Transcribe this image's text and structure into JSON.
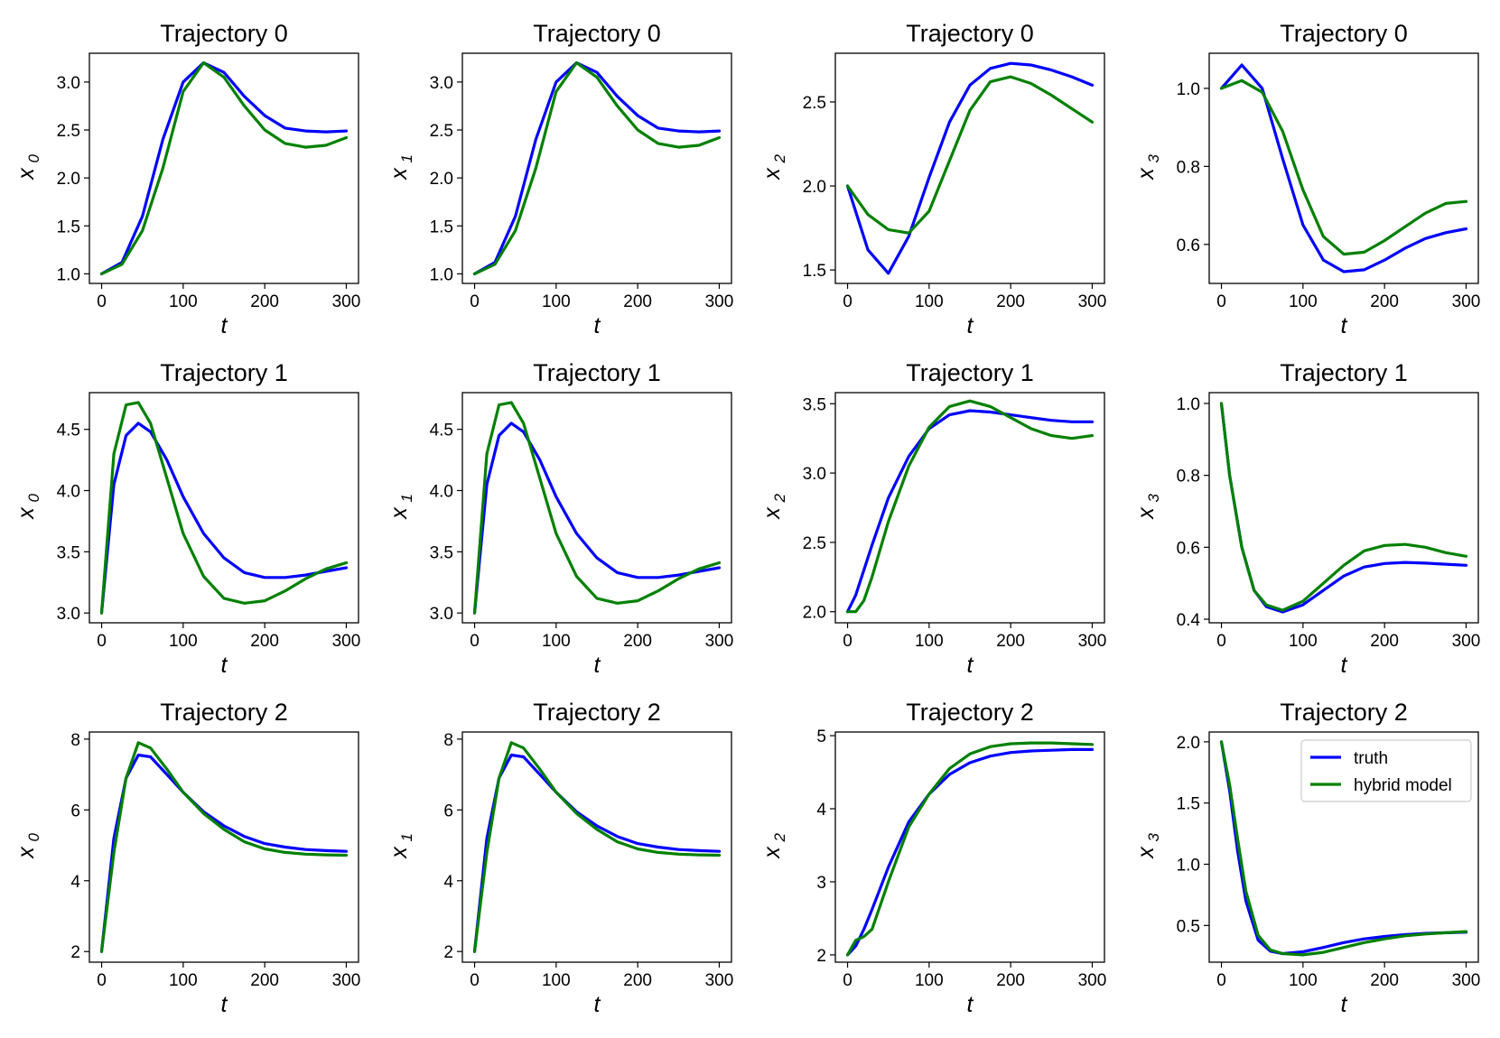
{
  "colors": {
    "truth": "#0000ff",
    "hybrid": "#008000"
  },
  "legend": {
    "truth_label": "truth",
    "hybrid_label": "hybrid model"
  },
  "chart_data": [
    {
      "type": "line",
      "title": "Trajectory 0",
      "xlabel": "t",
      "ylabel": "x",
      "ylabel_sub": "0",
      "xlim": [
        -15,
        315
      ],
      "ylim": [
        0.9,
        3.3
      ],
      "xticks": [
        0,
        100,
        200,
        300
      ],
      "xtick_labels": [
        "0",
        "100",
        "200",
        "300"
      ],
      "yticks": [
        1.0,
        1.5,
        2.0,
        2.5,
        3.0
      ],
      "ytick_labels": [
        "1.0",
        "1.5",
        "2.0",
        "2.5",
        "3.0"
      ],
      "x": [
        0,
        25,
        50,
        75,
        100,
        125,
        150,
        175,
        200,
        225,
        250,
        275,
        300
      ],
      "series": [
        {
          "name": "truth",
          "values": [
            1.0,
            1.12,
            1.6,
            2.4,
            3.0,
            3.2,
            3.1,
            2.85,
            2.65,
            2.52,
            2.49,
            2.48,
            2.49
          ]
        },
        {
          "name": "hybrid model",
          "values": [
            1.0,
            1.1,
            1.45,
            2.1,
            2.9,
            3.2,
            3.05,
            2.75,
            2.5,
            2.36,
            2.32,
            2.34,
            2.42
          ]
        }
      ]
    },
    {
      "type": "line",
      "title": "Trajectory 0",
      "xlabel": "t",
      "ylabel": "x",
      "ylabel_sub": "1",
      "xlim": [
        -15,
        315
      ],
      "ylim": [
        0.9,
        3.3
      ],
      "xticks": [
        0,
        100,
        200,
        300
      ],
      "xtick_labels": [
        "0",
        "100",
        "200",
        "300"
      ],
      "yticks": [
        1.0,
        1.5,
        2.0,
        2.5,
        3.0
      ],
      "ytick_labels": [
        "1.0",
        "1.5",
        "2.0",
        "2.5",
        "3.0"
      ],
      "x": [
        0,
        25,
        50,
        75,
        100,
        125,
        150,
        175,
        200,
        225,
        250,
        275,
        300
      ],
      "series": [
        {
          "name": "truth",
          "values": [
            1.0,
            1.12,
            1.6,
            2.4,
            3.0,
            3.2,
            3.1,
            2.85,
            2.65,
            2.52,
            2.49,
            2.48,
            2.49
          ]
        },
        {
          "name": "hybrid model",
          "values": [
            1.0,
            1.1,
            1.45,
            2.1,
            2.9,
            3.2,
            3.05,
            2.75,
            2.5,
            2.36,
            2.32,
            2.34,
            2.42
          ]
        }
      ]
    },
    {
      "type": "line",
      "title": "Trajectory 0",
      "xlabel": "t",
      "ylabel": "x",
      "ylabel_sub": "2",
      "xlim": [
        -15,
        315
      ],
      "ylim": [
        1.42,
        2.79
      ],
      "xticks": [
        0,
        100,
        200,
        300
      ],
      "xtick_labels": [
        "0",
        "100",
        "200",
        "300"
      ],
      "yticks": [
        1.5,
        2.0,
        2.5
      ],
      "ytick_labels": [
        "1.5",
        "2.0",
        "2.5"
      ],
      "x": [
        0,
        25,
        50,
        75,
        100,
        125,
        150,
        175,
        200,
        225,
        250,
        275,
        300
      ],
      "series": [
        {
          "name": "truth",
          "values": [
            2.0,
            1.62,
            1.48,
            1.7,
            2.05,
            2.38,
            2.6,
            2.7,
            2.73,
            2.72,
            2.69,
            2.65,
            2.6
          ]
        },
        {
          "name": "hybrid model",
          "values": [
            2.0,
            1.83,
            1.74,
            1.72,
            1.85,
            2.15,
            2.45,
            2.62,
            2.65,
            2.61,
            2.54,
            2.46,
            2.38
          ]
        }
      ]
    },
    {
      "type": "line",
      "title": "Trajectory 0",
      "xlabel": "t",
      "ylabel": "x",
      "ylabel_sub": "3",
      "xlim": [
        -15,
        315
      ],
      "ylim": [
        0.5,
        1.09
      ],
      "xticks": [
        0,
        100,
        200,
        300
      ],
      "xtick_labels": [
        "0",
        "100",
        "200",
        "300"
      ],
      "yticks": [
        0.6,
        0.8,
        1.0
      ],
      "ytick_labels": [
        "0.6",
        "0.8",
        "1.0"
      ],
      "x": [
        0,
        25,
        50,
        75,
        100,
        125,
        150,
        175,
        200,
        225,
        250,
        275,
        300
      ],
      "series": [
        {
          "name": "truth",
          "values": [
            1.0,
            1.06,
            1.0,
            0.82,
            0.65,
            0.56,
            0.53,
            0.535,
            0.56,
            0.59,
            0.615,
            0.63,
            0.64
          ]
        },
        {
          "name": "hybrid model",
          "values": [
            1.0,
            1.02,
            0.99,
            0.89,
            0.74,
            0.62,
            0.575,
            0.58,
            0.61,
            0.645,
            0.68,
            0.705,
            0.71
          ]
        }
      ]
    },
    {
      "type": "line",
      "title": "Trajectory 1",
      "xlabel": "t",
      "ylabel": "x",
      "ylabel_sub": "0",
      "xlim": [
        -15,
        315
      ],
      "ylim": [
        2.92,
        4.8
      ],
      "xticks": [
        0,
        100,
        200,
        300
      ],
      "xtick_labels": [
        "0",
        "100",
        "200",
        "300"
      ],
      "yticks": [
        3.0,
        3.5,
        4.0,
        4.5
      ],
      "ytick_labels": [
        "3.0",
        "3.5",
        "4.0",
        "4.5"
      ],
      "x": [
        0,
        15,
        30,
        45,
        60,
        80,
        100,
        125,
        150,
        175,
        200,
        225,
        250,
        275,
        300
      ],
      "series": [
        {
          "name": "truth",
          "values": [
            3.0,
            4.05,
            4.45,
            4.55,
            4.48,
            4.25,
            3.95,
            3.65,
            3.45,
            3.33,
            3.29,
            3.29,
            3.31,
            3.34,
            3.37
          ]
        },
        {
          "name": "hybrid model",
          "values": [
            3.0,
            4.3,
            4.7,
            4.72,
            4.55,
            4.1,
            3.65,
            3.3,
            3.12,
            3.08,
            3.1,
            3.18,
            3.28,
            3.36,
            3.41
          ]
        }
      ]
    },
    {
      "type": "line",
      "title": "Trajectory 1",
      "xlabel": "t",
      "ylabel": "x",
      "ylabel_sub": "1",
      "xlim": [
        -15,
        315
      ],
      "ylim": [
        2.92,
        4.8
      ],
      "xticks": [
        0,
        100,
        200,
        300
      ],
      "xtick_labels": [
        "0",
        "100",
        "200",
        "300"
      ],
      "yticks": [
        3.0,
        3.5,
        4.0,
        4.5
      ],
      "ytick_labels": [
        "3.0",
        "3.5",
        "4.0",
        "4.5"
      ],
      "x": [
        0,
        15,
        30,
        45,
        60,
        80,
        100,
        125,
        150,
        175,
        200,
        225,
        250,
        275,
        300
      ],
      "series": [
        {
          "name": "truth",
          "values": [
            3.0,
            4.05,
            4.45,
            4.55,
            4.48,
            4.25,
            3.95,
            3.65,
            3.45,
            3.33,
            3.29,
            3.29,
            3.31,
            3.34,
            3.37
          ]
        },
        {
          "name": "hybrid model",
          "values": [
            3.0,
            4.3,
            4.7,
            4.72,
            4.55,
            4.1,
            3.65,
            3.3,
            3.12,
            3.08,
            3.1,
            3.18,
            3.28,
            3.36,
            3.41
          ]
        }
      ]
    },
    {
      "type": "line",
      "title": "Trajectory 1",
      "xlabel": "t",
      "ylabel": "x",
      "ylabel_sub": "2",
      "xlim": [
        -15,
        315
      ],
      "ylim": [
        1.92,
        3.58
      ],
      "xticks": [
        0,
        100,
        200,
        300
      ],
      "xtick_labels": [
        "0",
        "100",
        "200",
        "300"
      ],
      "yticks": [
        2.0,
        2.5,
        3.0,
        3.5
      ],
      "ytick_labels": [
        "2.0",
        "2.5",
        "3.0",
        "3.5"
      ],
      "x": [
        0,
        10,
        20,
        30,
        50,
        75,
        100,
        125,
        150,
        175,
        200,
        225,
        250,
        275,
        300
      ],
      "series": [
        {
          "name": "truth",
          "values": [
            2.0,
            2.12,
            2.3,
            2.48,
            2.82,
            3.12,
            3.32,
            3.42,
            3.45,
            3.44,
            3.42,
            3.4,
            3.38,
            3.37,
            3.37
          ]
        },
        {
          "name": "hybrid model",
          "values": [
            2.0,
            2.0,
            2.08,
            2.25,
            2.65,
            3.05,
            3.33,
            3.48,
            3.52,
            3.48,
            3.4,
            3.32,
            3.27,
            3.25,
            3.27
          ]
        }
      ]
    },
    {
      "type": "line",
      "title": "Trajectory 1",
      "xlabel": "t",
      "ylabel": "x",
      "ylabel_sub": "3",
      "xlim": [
        -15,
        315
      ],
      "ylim": [
        0.39,
        1.03
      ],
      "xticks": [
        0,
        100,
        200,
        300
      ],
      "xtick_labels": [
        "0",
        "100",
        "200",
        "300"
      ],
      "yticks": [
        0.4,
        0.6,
        0.8,
        1.0
      ],
      "ytick_labels": [
        "0.4",
        "0.6",
        "0.8",
        "1.0"
      ],
      "x": [
        0,
        10,
        25,
        40,
        55,
        75,
        100,
        125,
        150,
        175,
        200,
        225,
        250,
        275,
        300
      ],
      "series": [
        {
          "name": "truth",
          "values": [
            1.0,
            0.8,
            0.6,
            0.48,
            0.435,
            0.42,
            0.44,
            0.48,
            0.52,
            0.545,
            0.555,
            0.558,
            0.556,
            0.553,
            0.55
          ]
        },
        {
          "name": "hybrid model",
          "values": [
            1.0,
            0.8,
            0.6,
            0.48,
            0.44,
            0.425,
            0.45,
            0.5,
            0.55,
            0.59,
            0.605,
            0.608,
            0.6,
            0.585,
            0.575
          ]
        }
      ]
    },
    {
      "type": "line",
      "title": "Trajectory 2",
      "xlabel": "t",
      "ylabel": "x",
      "ylabel_sub": "0",
      "xlim": [
        -15,
        315
      ],
      "ylim": [
        1.7,
        8.2
      ],
      "xticks": [
        0,
        100,
        200,
        300
      ],
      "xtick_labels": [
        "0",
        "100",
        "200",
        "300"
      ],
      "yticks": [
        2,
        4,
        6,
        8
      ],
      "ytick_labels": [
        "2",
        "4",
        "6",
        "8"
      ],
      "x": [
        0,
        15,
        30,
        45,
        60,
        80,
        100,
        125,
        150,
        175,
        200,
        225,
        250,
        275,
        300
      ],
      "series": [
        {
          "name": "truth",
          "values": [
            2.0,
            5.2,
            6.9,
            7.55,
            7.5,
            7.0,
            6.5,
            5.95,
            5.55,
            5.25,
            5.05,
            4.95,
            4.88,
            4.85,
            4.83
          ]
        },
        {
          "name": "hybrid model",
          "values": [
            2.0,
            4.8,
            6.9,
            7.9,
            7.75,
            7.15,
            6.5,
            5.9,
            5.45,
            5.1,
            4.9,
            4.8,
            4.75,
            4.73,
            4.72
          ]
        }
      ]
    },
    {
      "type": "line",
      "title": "Trajectory 2",
      "xlabel": "t",
      "ylabel": "x",
      "ylabel_sub": "1",
      "xlim": [
        -15,
        315
      ],
      "ylim": [
        1.7,
        8.2
      ],
      "xticks": [
        0,
        100,
        200,
        300
      ],
      "xtick_labels": [
        "0",
        "100",
        "200",
        "300"
      ],
      "yticks": [
        2,
        4,
        6,
        8
      ],
      "ytick_labels": [
        "2",
        "4",
        "6",
        "8"
      ],
      "x": [
        0,
        15,
        30,
        45,
        60,
        80,
        100,
        125,
        150,
        175,
        200,
        225,
        250,
        275,
        300
      ],
      "series": [
        {
          "name": "truth",
          "values": [
            2.0,
            5.2,
            6.9,
            7.55,
            7.5,
            7.0,
            6.5,
            5.95,
            5.55,
            5.25,
            5.05,
            4.95,
            4.88,
            4.85,
            4.83
          ]
        },
        {
          "name": "hybrid model",
          "values": [
            2.0,
            4.8,
            6.9,
            7.9,
            7.75,
            7.15,
            6.5,
            5.9,
            5.45,
            5.1,
            4.9,
            4.8,
            4.75,
            4.73,
            4.72
          ]
        }
      ]
    },
    {
      "type": "line",
      "title": "Trajectory 2",
      "xlabel": "t",
      "ylabel": "x",
      "ylabel_sub": "2",
      "xlim": [
        -15,
        315
      ],
      "ylim": [
        1.9,
        5.05
      ],
      "xticks": [
        0,
        100,
        200,
        300
      ],
      "xtick_labels": [
        "0",
        "100",
        "200",
        "300"
      ],
      "yticks": [
        2,
        3,
        4,
        5
      ],
      "ytick_labels": [
        "2",
        "3",
        "4",
        "5"
      ],
      "x": [
        0,
        10,
        20,
        30,
        50,
        75,
        100,
        125,
        150,
        175,
        200,
        225,
        250,
        275,
        300
      ],
      "series": [
        {
          "name": "truth",
          "values": [
            2.0,
            2.12,
            2.35,
            2.62,
            3.2,
            3.82,
            4.2,
            4.47,
            4.63,
            4.72,
            4.77,
            4.79,
            4.8,
            4.81,
            4.81
          ]
        },
        {
          "name": "hybrid model",
          "values": [
            2.0,
            2.2,
            2.25,
            2.35,
            3.0,
            3.75,
            4.2,
            4.55,
            4.75,
            4.85,
            4.89,
            4.9,
            4.9,
            4.89,
            4.88
          ]
        }
      ]
    },
    {
      "type": "line",
      "title": "Trajectory 2",
      "xlabel": "t",
      "ylabel": "x",
      "ylabel_sub": "3",
      "xlim": [
        -15,
        315
      ],
      "ylim": [
        0.2,
        2.08
      ],
      "xticks": [
        0,
        100,
        200,
        300
      ],
      "xtick_labels": [
        "0",
        "100",
        "200",
        "300"
      ],
      "yticks": [
        0.5,
        1.0,
        1.5,
        2.0
      ],
      "ytick_labels": [
        "0.5",
        "1.0",
        "1.5",
        "2.0"
      ],
      "x": [
        0,
        10,
        20,
        30,
        45,
        60,
        75,
        100,
        125,
        150,
        175,
        200,
        225,
        250,
        275,
        300
      ],
      "series": [
        {
          "name": "truth",
          "values": [
            2.0,
            1.6,
            1.1,
            0.7,
            0.38,
            0.29,
            0.27,
            0.285,
            0.32,
            0.36,
            0.39,
            0.41,
            0.425,
            0.435,
            0.44,
            0.445
          ]
        },
        {
          "name": "hybrid model",
          "values": [
            2.0,
            1.65,
            1.2,
            0.78,
            0.42,
            0.3,
            0.27,
            0.26,
            0.28,
            0.32,
            0.36,
            0.39,
            0.415,
            0.43,
            0.44,
            0.45
          ]
        }
      ],
      "legend": true
    }
  ]
}
